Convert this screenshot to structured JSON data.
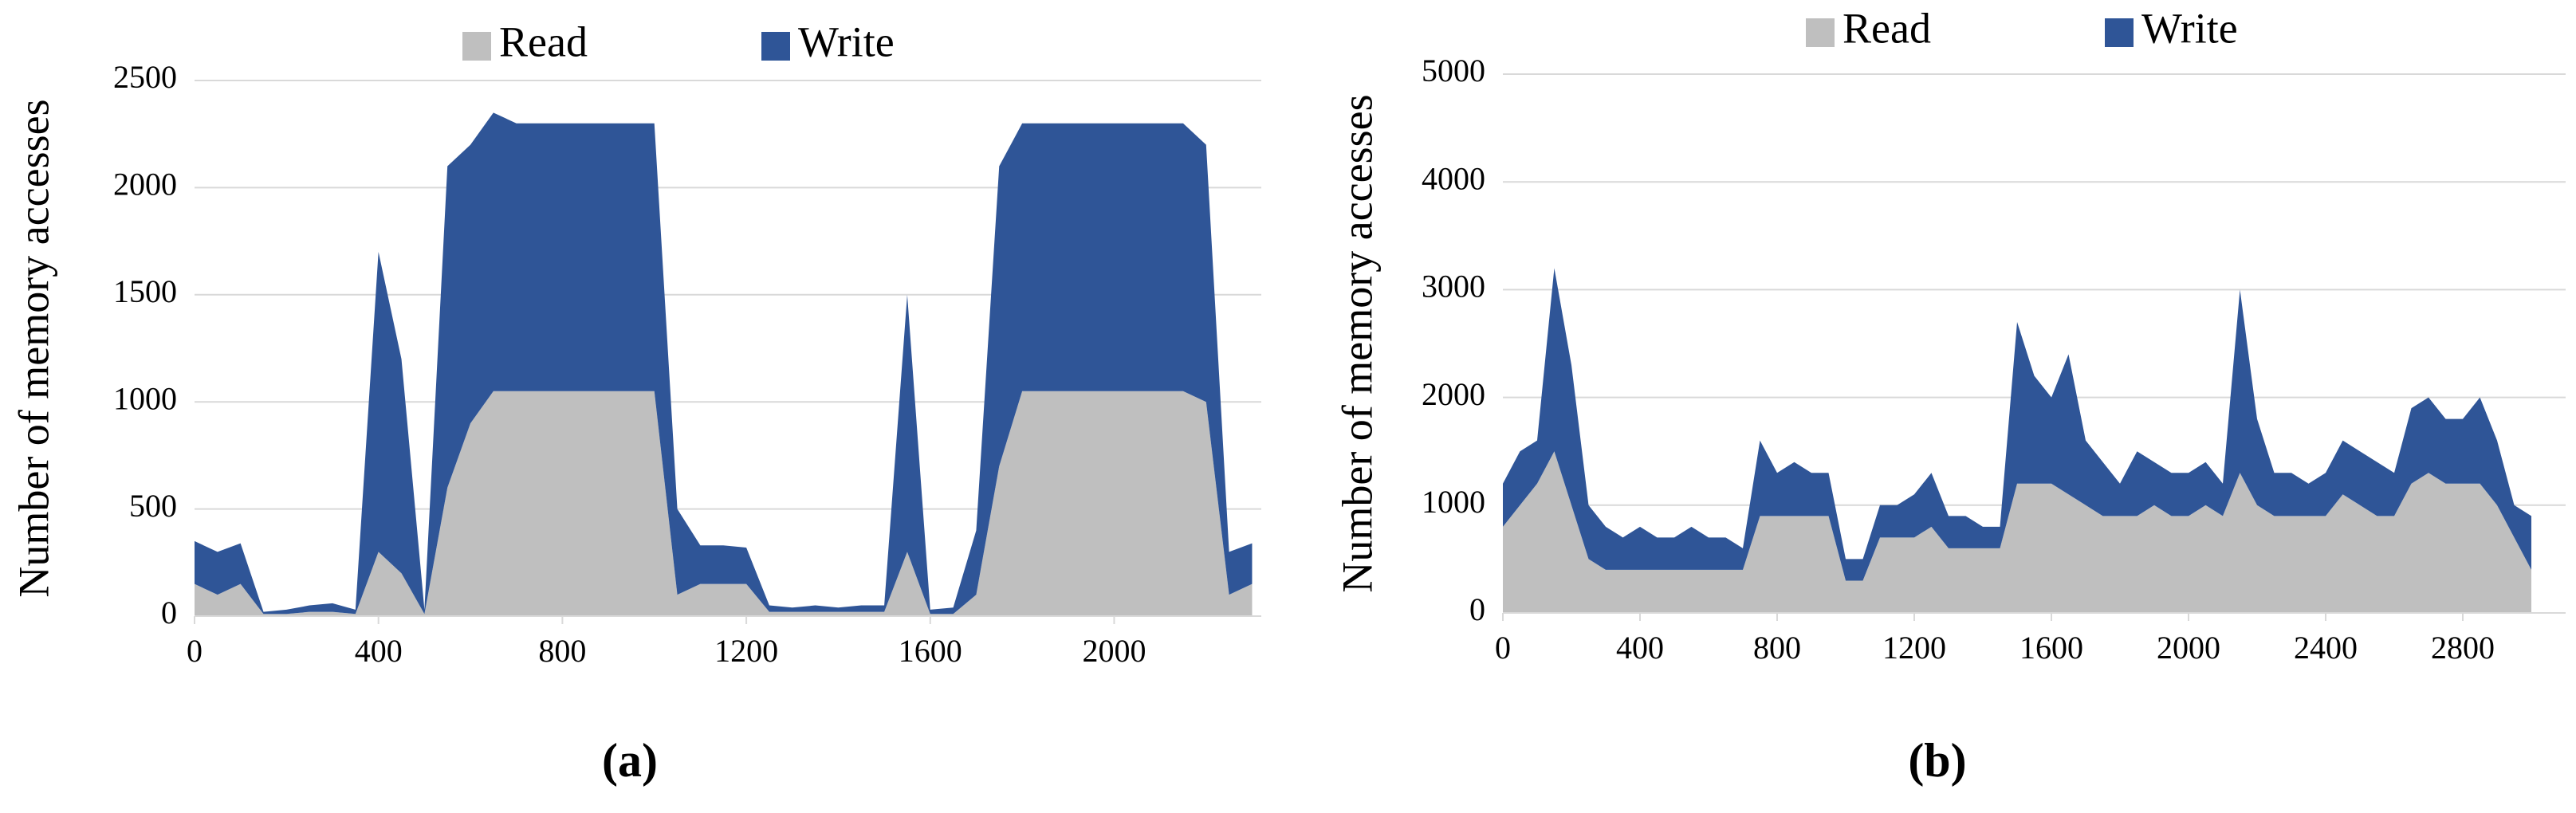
{
  "chart_data": [
    {
      "type": "area",
      "stacked": true,
      "caption": "(a)",
      "y_label": "Number of memory accesses",
      "grid": true,
      "legend": "top",
      "x": [
        0,
        50,
        100,
        150,
        200,
        250,
        300,
        350,
        400,
        450,
        500,
        550,
        600,
        650,
        700,
        750,
        800,
        850,
        900,
        950,
        1000,
        1050,
        1100,
        1150,
        1200,
        1250,
        1300,
        1350,
        1400,
        1450,
        1500,
        1550,
        1600,
        1650,
        1700,
        1750,
        1800,
        1850,
        1900,
        1950,
        2000,
        2050,
        2100,
        2150,
        2200,
        2250,
        2300
      ],
      "series": [
        {
          "name": "Read",
          "color": "#bfbfbf",
          "values": [
            150,
            100,
            150,
            10,
            10,
            20,
            20,
            10,
            300,
            200,
            10,
            600,
            900,
            1050,
            1050,
            1050,
            1050,
            1050,
            1050,
            1050,
            1050,
            100,
            150,
            150,
            150,
            20,
            20,
            20,
            20,
            20,
            20,
            300,
            10,
            10,
            100,
            700,
            1050,
            1050,
            1050,
            1050,
            1050,
            1050,
            1050,
            1050,
            1000,
            100,
            150
          ]
        },
        {
          "name": "Write",
          "color": "#2f5597",
          "values": [
            200,
            200,
            190,
            10,
            20,
            30,
            40,
            20,
            1400,
            1000,
            20,
            1500,
            1300,
            1300,
            1250,
            1250,
            1250,
            1250,
            1250,
            1250,
            1250,
            400,
            180,
            180,
            170,
            30,
            20,
            30,
            20,
            30,
            30,
            1200,
            20,
            30,
            300,
            1400,
            1250,
            1250,
            1250,
            1250,
            1250,
            1250,
            1250,
            1250,
            1200,
            200,
            190
          ]
        }
      ],
      "xlim": [
        0,
        2320
      ],
      "xticks": [
        0,
        400,
        800,
        1200,
        1600,
        2000
      ],
      "ylim": [
        0,
        2500
      ],
      "yticks": [
        0,
        500,
        1000,
        1500,
        2000,
        2500
      ]
    },
    {
      "type": "area",
      "stacked": true,
      "caption": "(b)",
      "y_label": "Number of memory accesses",
      "grid": true,
      "legend": "top",
      "x": [
        0,
        50,
        100,
        150,
        200,
        250,
        300,
        350,
        400,
        450,
        500,
        550,
        600,
        650,
        700,
        750,
        800,
        850,
        900,
        950,
        1000,
        1050,
        1100,
        1150,
        1200,
        1250,
        1300,
        1350,
        1400,
        1450,
        1500,
        1550,
        1600,
        1650,
        1700,
        1750,
        1800,
        1850,
        1900,
        1950,
        2000,
        2050,
        2100,
        2150,
        2200,
        2250,
        2300,
        2350,
        2400,
        2450,
        2500,
        2550,
        2600,
        2650,
        2700,
        2750,
        2800,
        2850,
        2900,
        2950,
        3000
      ],
      "series": [
        {
          "name": "Read",
          "color": "#bfbfbf",
          "values": [
            800,
            1000,
            1200,
            1500,
            1000,
            500,
            400,
            400,
            400,
            400,
            400,
            400,
            400,
            400,
            400,
            900,
            900,
            900,
            900,
            900,
            300,
            300,
            700,
            700,
            700,
            800,
            600,
            600,
            600,
            600,
            1200,
            1200,
            1200,
            1100,
            1000,
            900,
            900,
            900,
            1000,
            900,
            900,
            1000,
            900,
            1300,
            1000,
            900,
            900,
            900,
            900,
            1100,
            1000,
            900,
            900,
            1200,
            1300,
            1200,
            1200,
            1200,
            1000,
            700,
            400
          ]
        },
        {
          "name": "Write",
          "color": "#2f5597",
          "values": [
            400,
            500,
            400,
            1700,
            1300,
            500,
            400,
            300,
            400,
            300,
            300,
            400,
            300,
            300,
            200,
            700,
            400,
            500,
            400,
            400,
            200,
            200,
            300,
            300,
            400,
            500,
            300,
            300,
            200,
            200,
            1500,
            1000,
            800,
            1300,
            600,
            500,
            300,
            600,
            400,
            400,
            400,
            400,
            300,
            1700,
            800,
            400,
            400,
            300,
            400,
            500,
            500,
            500,
            400,
            700,
            700,
            600,
            600,
            800,
            600,
            300,
            500
          ]
        }
      ],
      "xlim": [
        0,
        3100
      ],
      "xticks": [
        0,
        400,
        800,
        1200,
        1600,
        2000,
        2400,
        2800
      ],
      "ylim": [
        0,
        5000
      ],
      "yticks": [
        0,
        1000,
        2000,
        3000,
        4000,
        5000
      ]
    }
  ]
}
